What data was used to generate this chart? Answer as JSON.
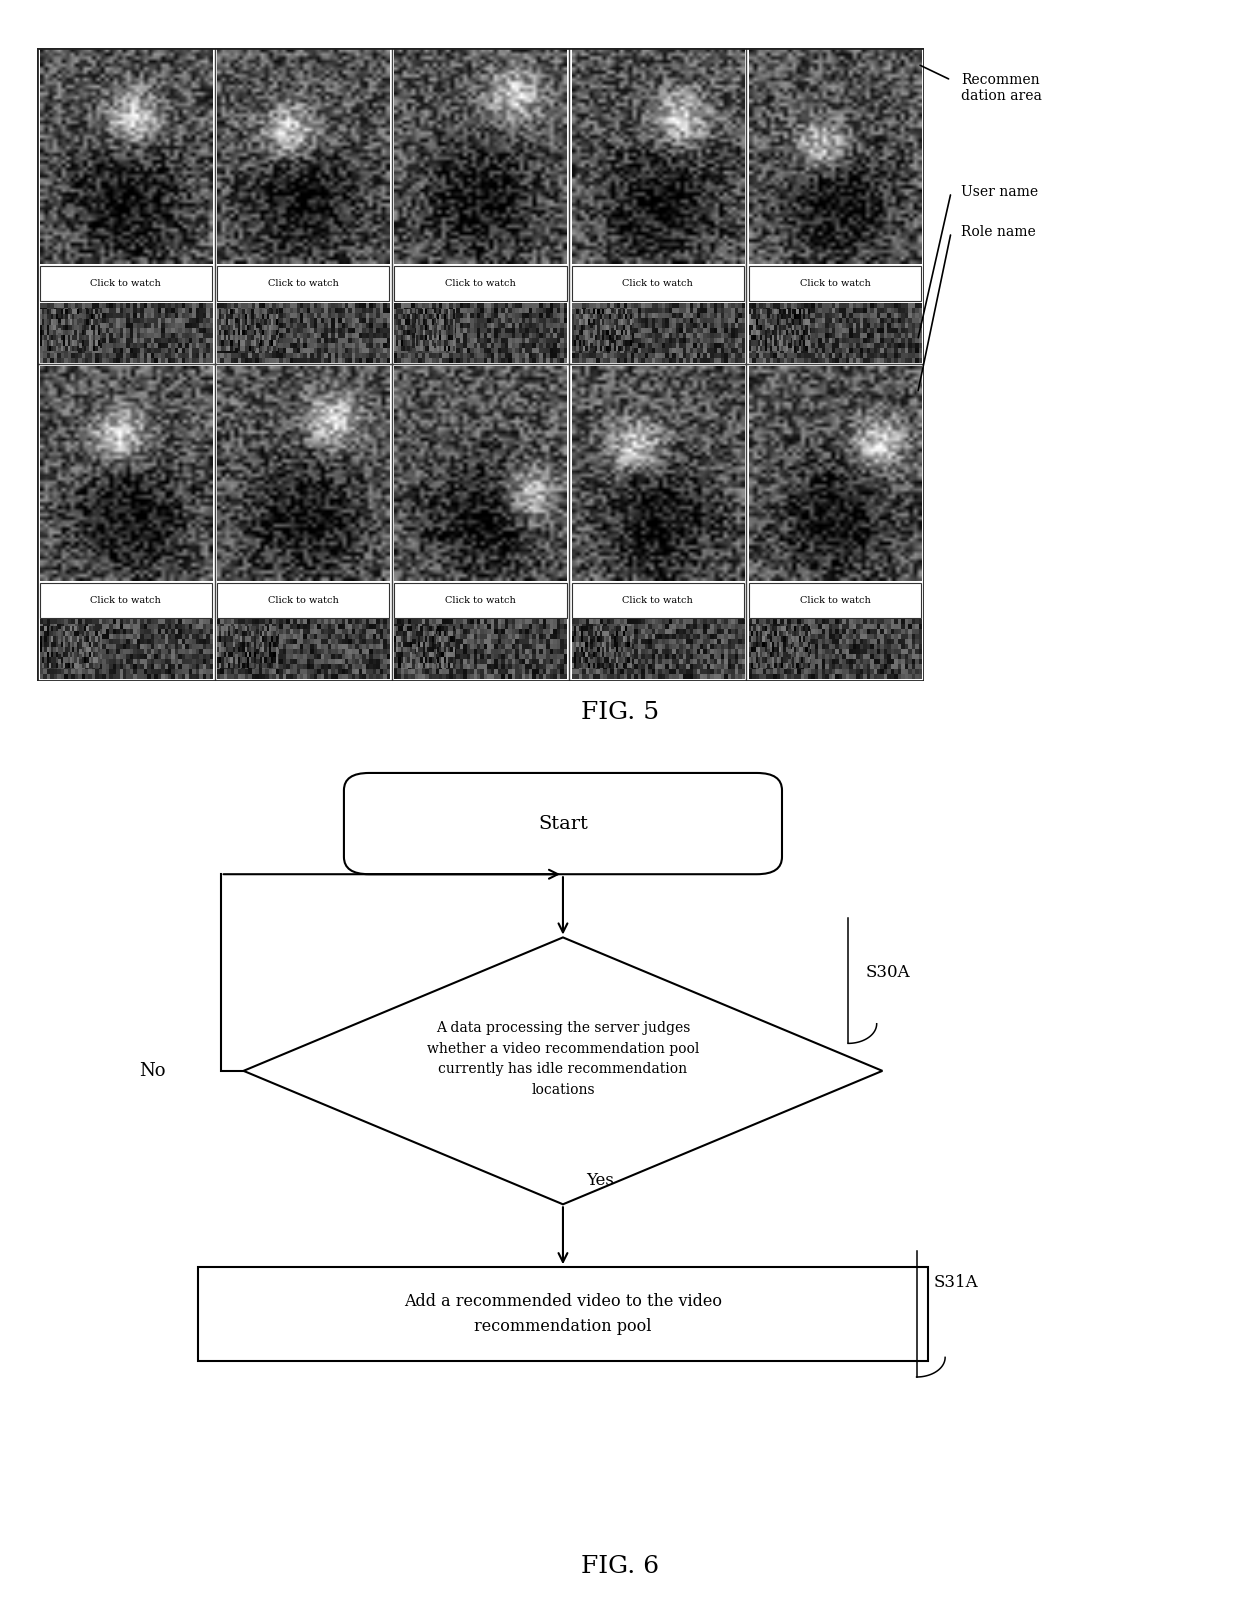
{
  "fig_width": 12.4,
  "fig_height": 16.02,
  "background_color": "#ffffff",
  "fig5_label": "FIG. 5",
  "fig6_label": "FIG. 6",
  "annotation_recommendation": "Recommen\ndation area",
  "annotation_username": "User name",
  "annotation_rolename": "Role name",
  "grid_rows": 2,
  "grid_cols": 5,
  "click_to_watch": "Click to watch",
  "flowchart_start": "Start",
  "flowchart_diamond": "A data processing the server judges\nwhether a video recommendation pool\ncurrently has idle recommendation\nlocations",
  "flowchart_rect": "Add a recommended video to the video\nrecommendation pool",
  "label_no": "No",
  "label_yes": "Yes",
  "label_s30a": "S30A",
  "label_s31a": "S31A",
  "grid_bg": "#1c1c1c",
  "cell_divider": "#444444",
  "btn_edge": "#333333"
}
